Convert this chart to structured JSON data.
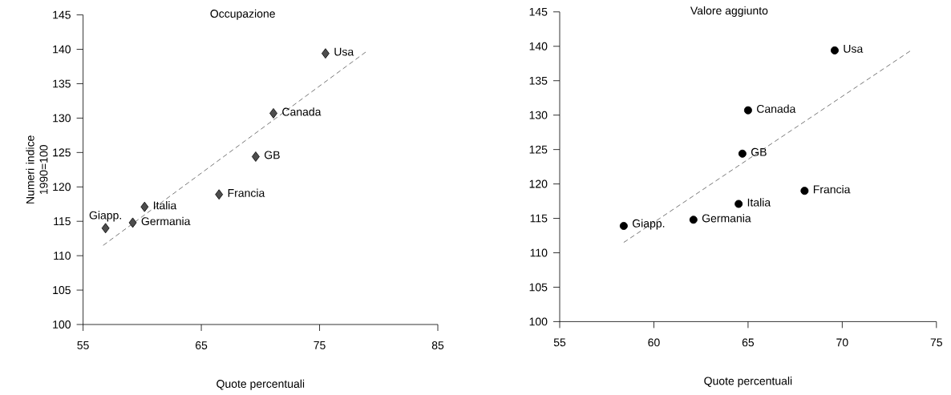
{
  "chart_data": [
    {
      "type": "scatter",
      "title": "Occupazione",
      "xlabel": "Quote percentuali",
      "ylabel": "Numeri indice 1990=100",
      "xlim": [
        55,
        85
      ],
      "xticks": [
        55,
        65,
        75,
        85
      ],
      "ylim": [
        100,
        145
      ],
      "yticks": [
        100,
        105,
        110,
        115,
        120,
        125,
        130,
        135,
        140,
        145
      ],
      "series": [
        {
          "type": "scatter",
          "marker": "diamond",
          "color": "#4d4d4d",
          "x": [
            56.9,
            59.2,
            60.2,
            66.5,
            69.6,
            71.1,
            75.5
          ],
          "values": [
            114.0,
            114.8,
            117.1,
            118.9,
            124.4,
            130.7,
            139.4
          ]
        },
        {
          "type": "line",
          "marker": "none",
          "line_style": "dashed",
          "color": "#555555",
          "x": [
            56.7,
            78.9
          ],
          "values": [
            111.5,
            139.6
          ]
        }
      ],
      "annotations": [
        {
          "text": "Giapp.",
          "x": 56.9,
          "y": 114.0
        },
        {
          "text": "Germania",
          "x": 59.2,
          "y": 114.8
        },
        {
          "text": "Italia",
          "x": 60.2,
          "y": 117.1
        },
        {
          "text": "Francia",
          "x": 66.5,
          "y": 118.9
        },
        {
          "text": "GB",
          "x": 69.6,
          "y": 124.4
        },
        {
          "text": "Canada",
          "x": 71.1,
          "y": 130.7
        },
        {
          "text": "Usa",
          "x": 75.5,
          "y": 139.4
        }
      ]
    },
    {
      "type": "scatter",
      "title": "Valore aggiunto",
      "xlabel": "Quote percentuali",
      "xlim": [
        55,
        75
      ],
      "xticks": [
        55,
        60,
        65,
        70,
        75
      ],
      "ylim": [
        100,
        145
      ],
      "yticks": [
        100,
        105,
        110,
        115,
        120,
        125,
        130,
        135,
        140,
        145
      ],
      "series": [
        {
          "type": "scatter",
          "marker": "circle",
          "color": "#000000",
          "x": [
            58.4,
            62.1,
            64.5,
            64.7,
            65.0,
            68.0,
            69.6
          ],
          "values": [
            113.9,
            114.8,
            117.1,
            124.4,
            130.7,
            119.0,
            139.4
          ]
        },
        {
          "type": "line",
          "marker": "none",
          "line_style": "dashed",
          "color": "#555555",
          "x": [
            58.4,
            73.6
          ],
          "values": [
            111.5,
            139.3
          ]
        }
      ],
      "annotations": [
        {
          "text": "Giapp.",
          "x": 58.4,
          "y": 113.9
        },
        {
          "text": "Germania",
          "x": 62.1,
          "y": 114.8
        },
        {
          "text": "Italia",
          "x": 64.5,
          "y": 117.1
        },
        {
          "text": "GB",
          "x": 64.7,
          "y": 124.4
        },
        {
          "text": "Canada",
          "x": 65.0,
          "y": 130.7
        },
        {
          "text": "Francia",
          "x": 68.0,
          "y": 119.0
        },
        {
          "text": "Usa",
          "x": 69.6,
          "y": 139.4
        }
      ]
    }
  ]
}
